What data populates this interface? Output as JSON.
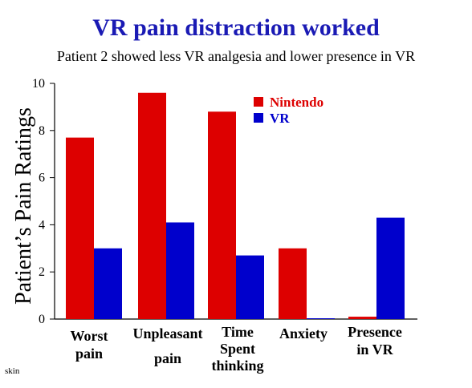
{
  "title": "VR pain distraction worked",
  "subtitle": "Patient 2 showed less VR analgesia and lower presence in VR",
  "footnote": "skin",
  "chart_data": {
    "type": "bar",
    "title": "VR pain distraction worked",
    "subtitle": "Patient 2 showed less VR analgesia and lower presence in VR",
    "ylabel": "Patient’s Pain Ratings",
    "xlabel": "",
    "ylim": [
      0,
      10
    ],
    "yticks": [
      0,
      2,
      4,
      6,
      8,
      10
    ],
    "categories": [
      [
        "Worst",
        "pain"
      ],
      [
        "Unpleasant",
        "pain"
      ],
      [
        "Time",
        "Spent",
        "thinking"
      ],
      [
        "Anxiety"
      ],
      [
        "Presence",
        "in VR"
      ]
    ],
    "series": [
      {
        "name": "Nintendo",
        "color": "#dd0000",
        "values": [
          7.7,
          9.6,
          8.8,
          3.0,
          0.1
        ]
      },
      {
        "name": "VR",
        "color": "#0000cc",
        "values": [
          3.0,
          4.1,
          2.7,
          0.0,
          4.3
        ]
      }
    ],
    "legend_position": "top-right",
    "grid": false
  }
}
